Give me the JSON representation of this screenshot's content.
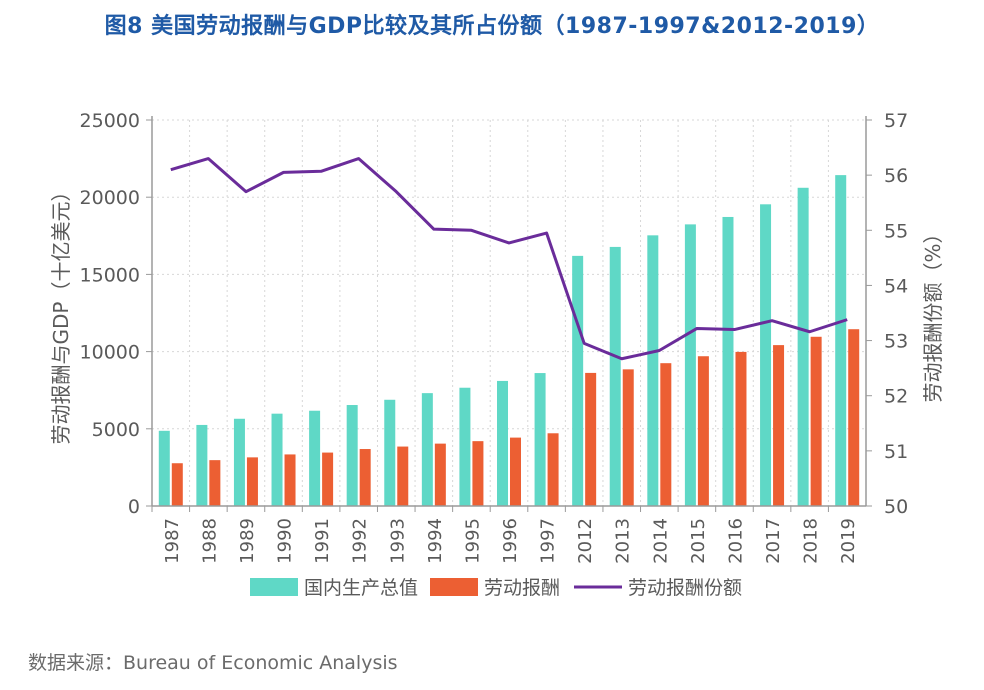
{
  "title": "图8 美国劳动报酬与GDP比较及其所占份额（1987-1997&2012-2019）",
  "source": "数据来源：Bureau of Economic Analysis",
  "colors": {
    "gdp": "#5fd8c6",
    "compensation": "#ec5f33",
    "share": "#6a2c9a",
    "axis": "#9a9a9a",
    "grid": "#d7d7d7",
    "text": "#5a5a5a"
  },
  "chart_data": {
    "type": "bar",
    "categories": [
      "1987",
      "1988",
      "1989",
      "1990",
      "1991",
      "1992",
      "1993",
      "1994",
      "1995",
      "1996",
      "1997",
      "2012",
      "2013",
      "2014",
      "2015",
      "2016",
      "2017",
      "2018",
      "2019"
    ],
    "series": [
      {
        "name": "国内生产总值",
        "type": "bar",
        "axis": "left",
        "values": [
          4870,
          5250,
          5650,
          5980,
          6170,
          6540,
          6880,
          7310,
          7660,
          8100,
          8610,
          16200,
          16780,
          17530,
          18240,
          18720,
          19540,
          20610,
          21430
        ]
      },
      {
        "name": "劳动报酬",
        "type": "bar",
        "axis": "left",
        "values": [
          2770,
          2970,
          3150,
          3340,
          3460,
          3690,
          3850,
          4040,
          4200,
          4430,
          4710,
          8620,
          8850,
          9250,
          9700,
          9980,
          10420,
          10960,
          11450
        ]
      },
      {
        "name": "劳动报酬份额",
        "type": "line",
        "axis": "right",
        "values": [
          56.1,
          56.3,
          55.7,
          56.05,
          56.07,
          56.3,
          55.7,
          55.02,
          55.0,
          54.77,
          54.95,
          52.95,
          52.67,
          52.82,
          53.22,
          53.2,
          53.36,
          53.16,
          53.38
        ]
      }
    ],
    "ylabel": "劳动报酬与GDP（十亿美元）",
    "y2label": "劳动报酬份额（%）",
    "ylim": [
      0,
      25000
    ],
    "yticks": [
      0,
      5000,
      10000,
      15000,
      20000,
      25000
    ],
    "y2lim": [
      50,
      57
    ],
    "y2ticks": [
      50,
      51,
      52,
      53,
      54,
      55,
      56,
      57
    ],
    "grid": true,
    "legend": "bottom"
  }
}
